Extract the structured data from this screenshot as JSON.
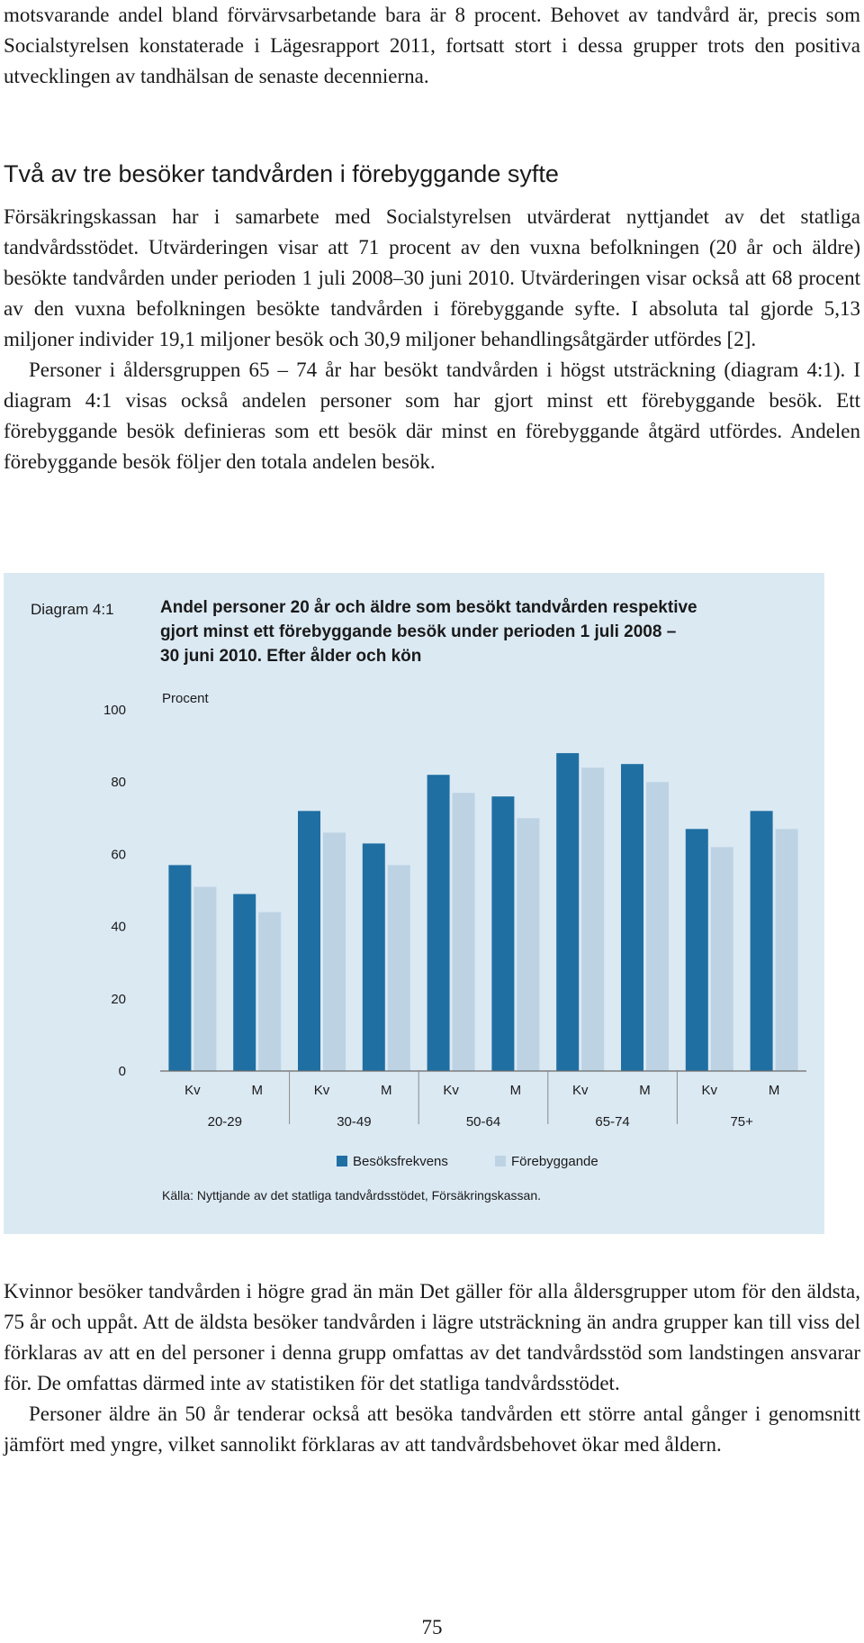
{
  "intro": {
    "paragraph": "motsvarande andel bland förvärvsarbetande bara är 8 procent. Behovet av tandvård är, precis som Socialstyrelsen konstaterade i Lägesrapport 2011, fortsatt stort i dessa grupper trots den positiva utvecklingen av tandhälsan de senaste decennierna."
  },
  "section": {
    "heading": "Två av tre besöker tandvården i förebyggande syfte",
    "paragraph1": "Försäkringskassan har i samarbete med Socialstyrelsen utvärderat nyttjandet av det statliga tandvårdsstödet. Utvärderingen visar att 71 procent av den vuxna befolkningen (20 år och äldre) besökte tandvården under perioden 1 juli 2008–30 juni 2010. Utvärderingen visar också att 68 procent av den vuxna befolkningen besökte tandvården i förebyggande syfte. I absoluta tal gjorde 5,13 miljoner individer 19,1 miljoner besök och 30,9 miljoner behandlingsåtgärder utfördes [2].",
    "paragraph2": "Personer i åldersgruppen 65 – 74 år har besökt tandvården i högst utsträckning (diagram 4:1). I diagram 4:1 visas också andelen personer som har gjort minst ett förebyggande besök. Ett förebyggande besök definieras som ett besök där minst en förebyggande åtgärd utfördes. Andelen förebyggande besök följer den totala andelen besök."
  },
  "figure": {
    "label": "Diagram 4:1",
    "title_lines": [
      "Andel personer 20 år och äldre som besökt tandvården respektive",
      "gjort minst ett förebyggande besök under perioden 1 juli 2008 –",
      "30 juni 2010. Efter ålder och kön"
    ],
    "source": "Källa: Nyttjande av det statliga tandvårdsstödet, Försäkringskassan.",
    "colors": {
      "background": "#dbe9f3",
      "besoksfrekvens": "#1f6fa3",
      "forebyggande": "#bdd3e4"
    }
  },
  "chart_data": {
    "type": "bar",
    "ylabel": "Procent",
    "ylim": [
      0,
      100
    ],
    "yticks": [
      0,
      20,
      40,
      60,
      80,
      100
    ],
    "categories": [
      "Kv",
      "M",
      "Kv",
      "M",
      "Kv",
      "M",
      "Kv",
      "M",
      "Kv",
      "M"
    ],
    "groups": [
      "20-29",
      "30-49",
      "50-64",
      "65-74",
      "75+"
    ],
    "series": [
      {
        "name": "Besöksfrekvens",
        "values": [
          57,
          49,
          72,
          63,
          82,
          76,
          88,
          85,
          67,
          72
        ]
      },
      {
        "name": "Förebyggande",
        "values": [
          51,
          44,
          66,
          57,
          77,
          70,
          84,
          80,
          62,
          67
        ]
      }
    ],
    "legend_position": "bottom",
    "grid": false
  },
  "after": {
    "paragraph1": "Kvinnor besöker tandvården i högre grad än män Det gäller för alla åldersgrupper utom för den äldsta, 75 år och uppåt. Att de äldsta besöker tandvården i lägre utsträckning än andra grupper kan till viss del förklaras av att en del personer i denna grupp omfattas av det tandvårdsstöd som landstingen ansvarar för. De omfattas därmed inte av statistiken för det statliga tandvårdsstödet.",
    "paragraph2": "Personer äldre än 50 år tenderar också att besöka tandvården ett större antal gånger i genomsnitt jämfört med yngre, vilket sannolikt förklaras av att tandvårdsbehovet ökar med åldern."
  },
  "page_number": "75"
}
